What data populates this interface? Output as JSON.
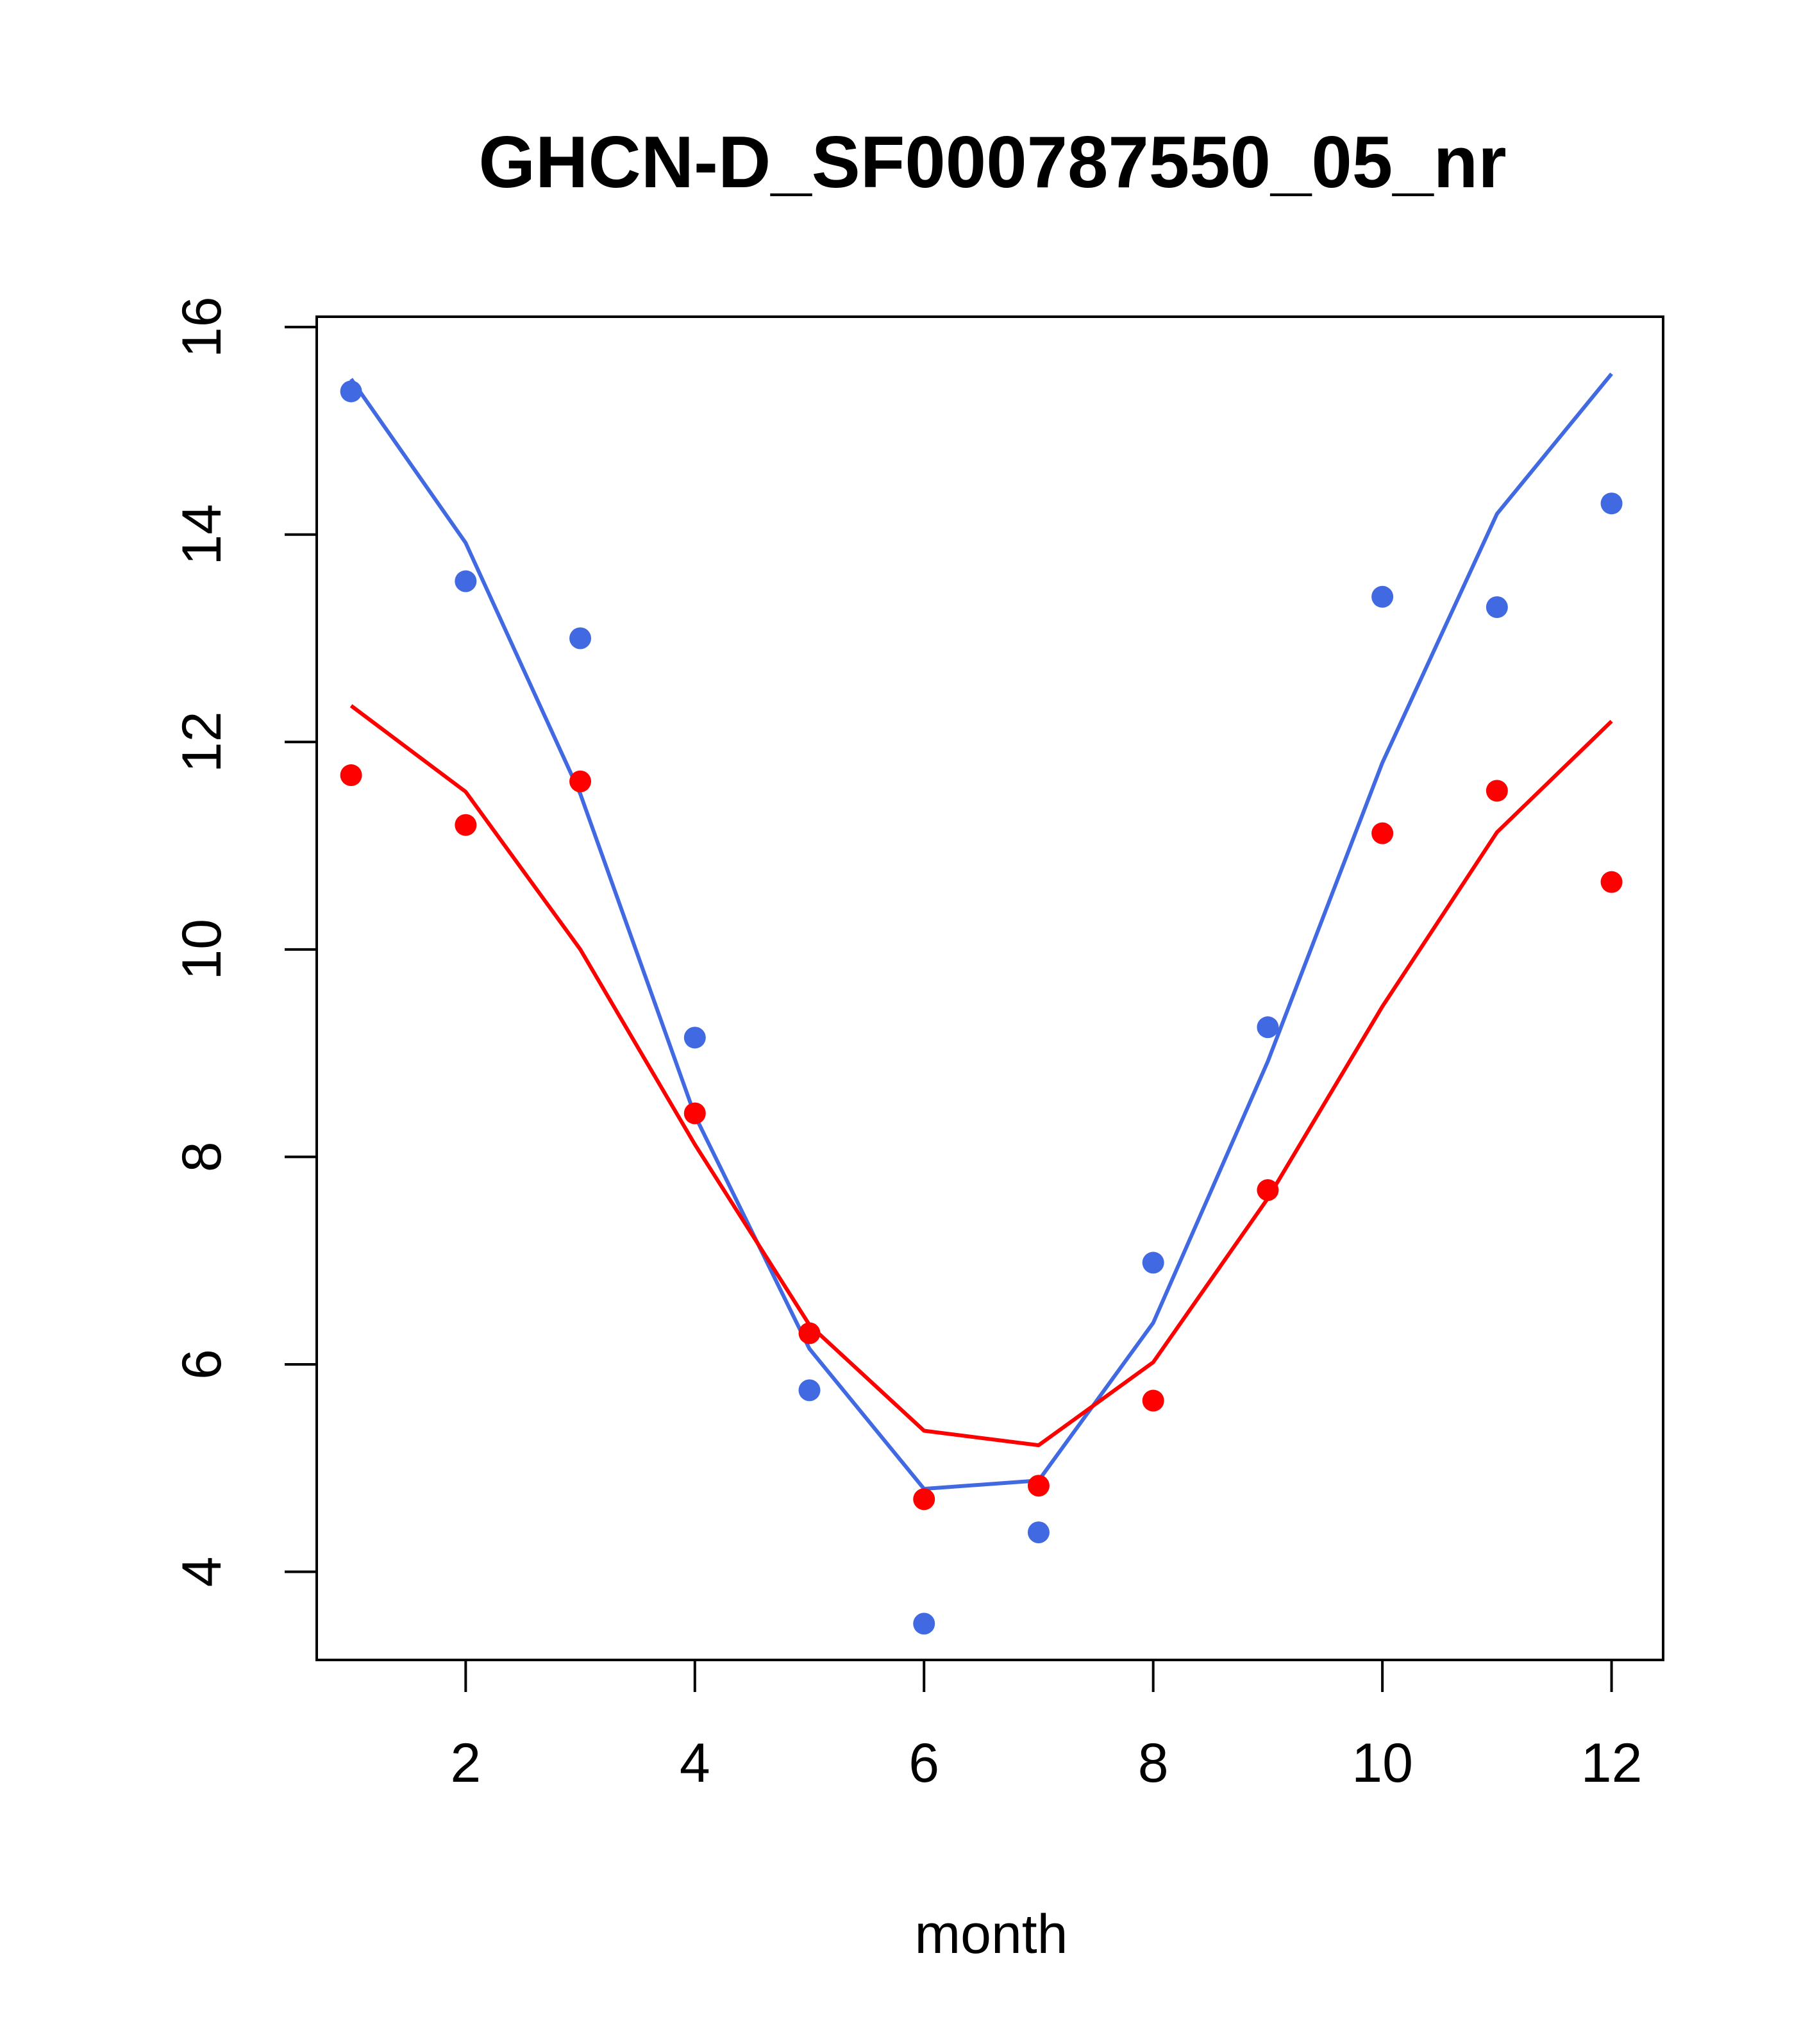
{
  "chart_data": {
    "type": "line",
    "title": "GHCN-D_SF000787550_05_nr",
    "xlabel": "month",
    "ylabel": "",
    "xlim": [
      0.7,
      12.45
    ],
    "ylim": [
      3.15,
      16.1
    ],
    "xticks": [
      2,
      4,
      6,
      8,
      10,
      12
    ],
    "yticks": [
      4,
      6,
      8,
      10,
      12,
      14,
      16
    ],
    "grid": false,
    "legend": "none",
    "x": [
      1,
      2,
      3,
      4,
      5,
      6,
      7,
      8,
      9,
      10,
      11,
      12
    ],
    "series": [
      {
        "color": "#4169e1",
        "line_values": [
          15.5,
          13.92,
          11.5,
          8.4,
          6.15,
          4.8,
          4.88,
          6.4,
          8.92,
          11.8,
          14.2,
          15.55
        ],
        "point_values": [
          15.38,
          13.55,
          13.0,
          9.15,
          5.75,
          3.5,
          4.38,
          6.98,
          9.25,
          13.4,
          13.3,
          14.3
        ]
      },
      {
        "color": "#ff0000",
        "line_values": [
          12.35,
          11.52,
          10.0,
          8.12,
          6.38,
          5.36,
          5.22,
          6.02,
          7.6,
          9.45,
          11.13,
          12.2
        ],
        "point_values": [
          11.68,
          11.2,
          11.62,
          8.42,
          6.3,
          4.7,
          4.83,
          5.65,
          7.68,
          11.12,
          11.53,
          10.65
        ]
      }
    ]
  }
}
